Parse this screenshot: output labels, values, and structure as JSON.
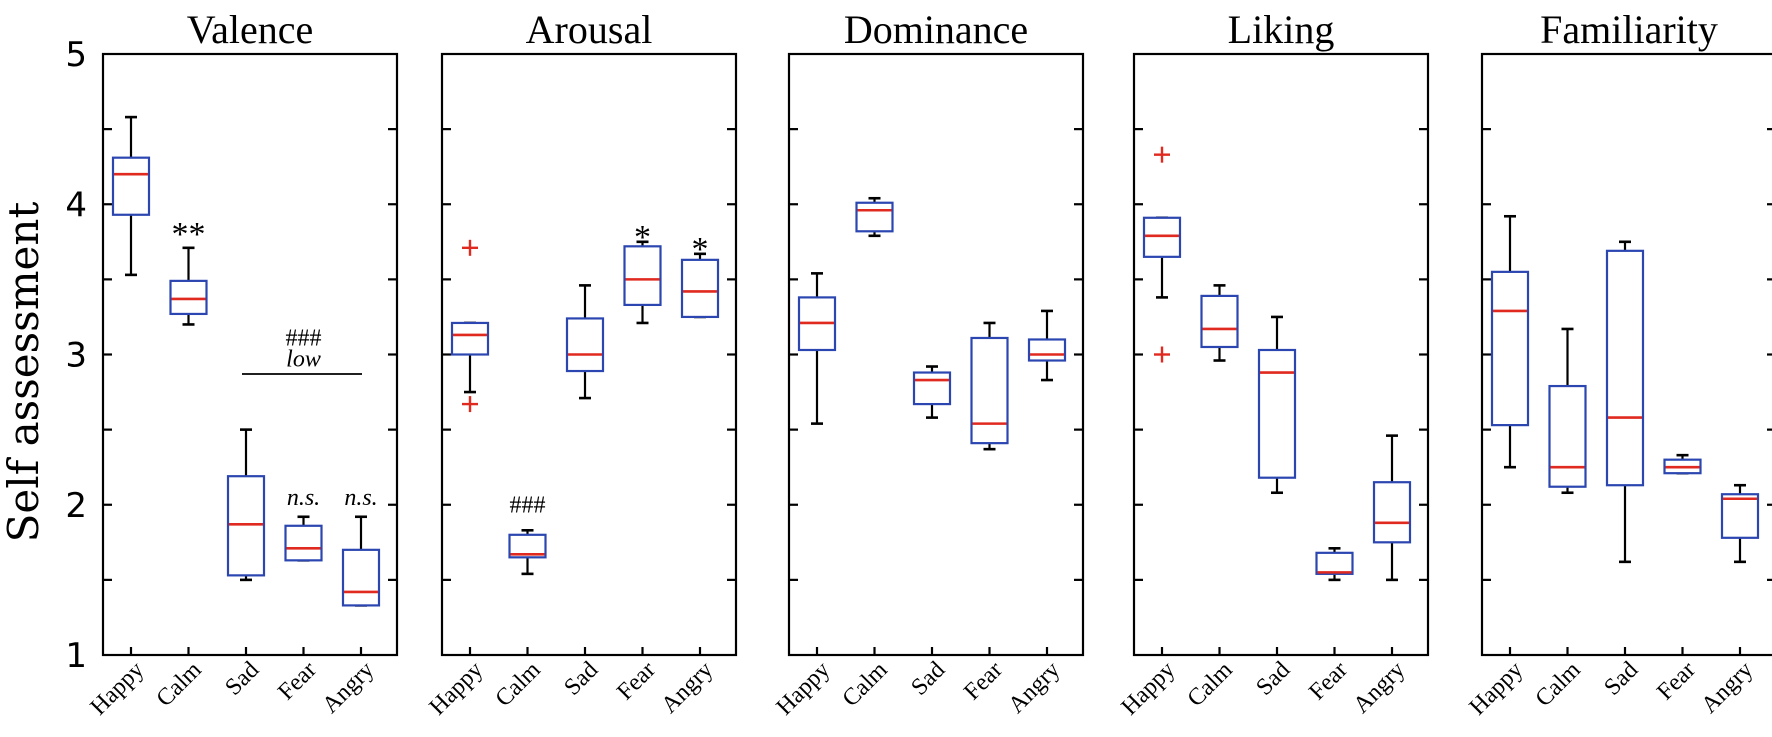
{
  "chart_data": {
    "type": "box",
    "ylabel": "Self assessment",
    "ylim": [
      1,
      5
    ],
    "yticks": [
      "1",
      "2",
      "3",
      "4",
      "5"
    ],
    "categories": [
      "Happy",
      "Calm",
      "Sad",
      "Fear",
      "Angry"
    ],
    "colors": {
      "box": "#2b46b0",
      "median": "#e0291f",
      "whisker": "#000000",
      "outlier": "#e0291f"
    },
    "panels": [
      {
        "title": "Valence",
        "boxes": [
          {
            "category": "Happy",
            "whisker_low": 3.53,
            "q1": 3.93,
            "median": 4.2,
            "q3": 4.31,
            "whisker_high": 4.58,
            "outliers": []
          },
          {
            "category": "Calm",
            "whisker_low": 3.2,
            "q1": 3.27,
            "median": 3.37,
            "q3": 3.49,
            "whisker_high": 3.71,
            "outliers": []
          },
          {
            "category": "Sad",
            "whisker_low": 1.5,
            "q1": 1.53,
            "median": 1.87,
            "q3": 2.19,
            "whisker_high": 2.5,
            "outliers": []
          },
          {
            "category": "Fear",
            "whisker_low": 1.63,
            "q1": 1.63,
            "median": 1.71,
            "q3": 1.86,
            "whisker_high": 1.92,
            "outliers": []
          },
          {
            "category": "Angry",
            "whisker_low": 1.33,
            "q1": 1.33,
            "median": 1.42,
            "q3": 1.7,
            "whisker_high": 1.92,
            "outliers": []
          }
        ],
        "annotations": [
          {
            "text": "**",
            "category": "Calm",
            "y": 3.85,
            "style": "normal"
          },
          {
            "text": "###",
            "category": "Fear",
            "y": 3.06,
            "style": "normal"
          },
          {
            "text": "low",
            "category": "Fear",
            "y": 2.92,
            "style": "italic"
          },
          {
            "text": "n.s.",
            "category": "Fear",
            "y": 2.0,
            "style": "italic"
          },
          {
            "text": "n.s.",
            "category": "Angry",
            "y": 2.0,
            "style": "italic"
          }
        ],
        "bracket": {
          "from": "Sad",
          "to": "Angry",
          "y": 2.87
        }
      },
      {
        "title": "Arousal",
        "boxes": [
          {
            "category": "Happy",
            "whisker_low": 2.75,
            "q1": 3.0,
            "median": 3.13,
            "q3": 3.21,
            "whisker_high": 3.21,
            "outliers": [
              3.71,
              2.67
            ]
          },
          {
            "category": "Calm",
            "whisker_low": 1.54,
            "q1": 1.65,
            "median": 1.67,
            "q3": 1.8,
            "whisker_high": 1.83,
            "outliers": []
          },
          {
            "category": "Sad",
            "whisker_low": 2.71,
            "q1": 2.89,
            "median": 3.0,
            "q3": 3.24,
            "whisker_high": 3.46,
            "outliers": []
          },
          {
            "category": "Fear",
            "whisker_low": 3.21,
            "q1": 3.33,
            "median": 3.5,
            "q3": 3.72,
            "whisker_high": 3.75,
            "outliers": []
          },
          {
            "category": "Angry",
            "whisker_low": 3.25,
            "q1": 3.25,
            "median": 3.42,
            "q3": 3.63,
            "whisker_high": 3.67,
            "outliers": []
          }
        ],
        "annotations": [
          {
            "text": "###",
            "category": "Calm",
            "y": 1.95,
            "style": "normal"
          },
          {
            "text": "*",
            "category": "Fear",
            "y": 3.83,
            "style": "normal"
          },
          {
            "text": "*",
            "category": "Angry",
            "y": 3.75,
            "style": "normal"
          }
        ]
      },
      {
        "title": "Dominance",
        "boxes": [
          {
            "category": "Happy",
            "whisker_low": 2.54,
            "q1": 3.03,
            "median": 3.21,
            "q3": 3.38,
            "whisker_high": 3.54,
            "outliers": []
          },
          {
            "category": "Calm",
            "whisker_low": 3.79,
            "q1": 3.82,
            "median": 3.96,
            "q3": 4.01,
            "whisker_high": 4.04,
            "outliers": []
          },
          {
            "category": "Sad",
            "whisker_low": 2.58,
            "q1": 2.67,
            "median": 2.83,
            "q3": 2.88,
            "whisker_high": 2.92,
            "outliers": []
          },
          {
            "category": "Fear",
            "whisker_low": 2.37,
            "q1": 2.41,
            "median": 2.54,
            "q3": 3.11,
            "whisker_high": 3.21,
            "outliers": []
          },
          {
            "category": "Angry",
            "whisker_low": 2.83,
            "q1": 2.96,
            "median": 3.0,
            "q3": 3.1,
            "whisker_high": 3.29,
            "outliers": []
          }
        ],
        "annotations": []
      },
      {
        "title": "Liking",
        "boxes": [
          {
            "category": "Happy",
            "whisker_low": 3.38,
            "q1": 3.65,
            "median": 3.79,
            "q3": 3.91,
            "whisker_high": 3.91,
            "outliers": [
              4.33,
              3.0
            ]
          },
          {
            "category": "Calm",
            "whisker_low": 2.96,
            "q1": 3.05,
            "median": 3.17,
            "q3": 3.39,
            "whisker_high": 3.46,
            "outliers": []
          },
          {
            "category": "Sad",
            "whisker_low": 2.08,
            "q1": 2.18,
            "median": 2.88,
            "q3": 3.03,
            "whisker_high": 3.25,
            "outliers": []
          },
          {
            "category": "Fear",
            "whisker_low": 1.5,
            "q1": 1.54,
            "median": 1.55,
            "q3": 1.68,
            "whisker_high": 1.71,
            "outliers": []
          },
          {
            "category": "Angry",
            "whisker_low": 1.5,
            "q1": 1.75,
            "median": 1.88,
            "q3": 2.15,
            "whisker_high": 2.46,
            "outliers": []
          }
        ],
        "annotations": []
      },
      {
        "title": "Familiarity",
        "boxes": [
          {
            "category": "Happy",
            "whisker_low": 2.25,
            "q1": 2.53,
            "median": 3.29,
            "q3": 3.55,
            "whisker_high": 3.92,
            "outliers": []
          },
          {
            "category": "Calm",
            "whisker_low": 2.08,
            "q1": 2.12,
            "median": 2.25,
            "q3": 2.79,
            "whisker_high": 3.17,
            "outliers": []
          },
          {
            "category": "Sad",
            "whisker_low": 1.62,
            "q1": 2.13,
            "median": 2.58,
            "q3": 3.69,
            "whisker_high": 3.75,
            "outliers": []
          },
          {
            "category": "Fear",
            "whisker_low": 2.21,
            "q1": 2.21,
            "median": 2.25,
            "q3": 2.3,
            "whisker_high": 2.33,
            "outliers": []
          },
          {
            "category": "Angry",
            "whisker_low": 1.62,
            "q1": 1.78,
            "median": 2.04,
            "q3": 2.07,
            "whisker_high": 2.13,
            "outliers": []
          }
        ],
        "annotations": []
      }
    ]
  }
}
